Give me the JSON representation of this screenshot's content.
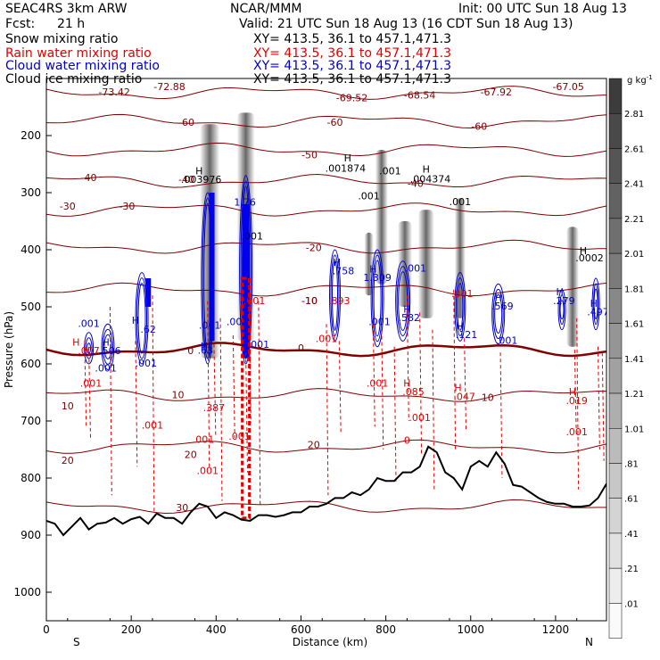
{
  "header": {
    "model": "SEAC4RS  3km ARW",
    "org": "NCAR/MMM",
    "init": "Init: 00 UTC Sun 18 Aug 13",
    "fcst_label": "Fcst:",
    "fcst_value": "21 h",
    "valid": "Valid: 21 UTC Sun 18 Aug 13 (16 CDT Sun 18 Aug 13)"
  },
  "legend": [
    {
      "label": "Snow mixing ratio",
      "xy": "XY=  413.5, 36.1 to 457.1,471.3",
      "color": "#000000"
    },
    {
      "label": "Rain water mixing ratio",
      "xy": "XY=  413.5, 36.1 to 457.1,471.3",
      "color": "#e00000"
    },
    {
      "label": "Cloud water mixing ratio",
      "xy": "XY=  413.5, 36.1 to 457.1,471.3",
      "color": "#0000cc"
    },
    {
      "label": "Cloud ice mixing ratio",
      "xy": "XY=  413.5, 36.1 to 457.1,471.3",
      "color": "#000000"
    }
  ],
  "chart_data": {
    "type": "cross-section",
    "xlabel": "Distance (km)",
    "ylabel": "Pressure (hPa)",
    "xlim": [
      0,
      1320
    ],
    "ylim": [
      1050,
      100
    ],
    "x_ticks": [
      "0",
      "200",
      "400",
      "600",
      "800",
      "1000",
      "1200"
    ],
    "x_tick_values": [
      0,
      200,
      400,
      600,
      800,
      1000,
      1200
    ],
    "y_ticks": [
      "200",
      "300",
      "400",
      "500",
      "600",
      "700",
      "800",
      "900",
      "1000"
    ],
    "y_tick_values": [
      200,
      300,
      400,
      500,
      600,
      700,
      800,
      900,
      1000
    ],
    "x_end_labels": {
      "left": "S",
      "right": "N"
    },
    "colorbar": {
      "unit": "g kg",
      "unit_exp": "-1",
      "labels": [
        "2.81",
        "2.61",
        "2.41",
        "2.21",
        "2.01",
        "1.81",
        "1.61",
        "1.41",
        "1.21",
        "1.01",
        ".81",
        ".61",
        ".41",
        ".21",
        ".01"
      ],
      "values": [
        2.81,
        2.61,
        2.41,
        2.21,
        2.01,
        1.81,
        1.61,
        1.41,
        1.21,
        1.01,
        0.81,
        0.61,
        0.41,
        0.21,
        0.01
      ]
    },
    "temperature_contours": {
      "levels": [
        -70,
        -60,
        -50,
        -40,
        -30,
        -20,
        -10,
        0,
        10,
        20,
        30
      ],
      "labels": [
        {
          "text": "-73.42",
          "x": 160,
          "p": 130
        },
        {
          "text": "-72.88",
          "x": 290,
          "p": 120
        },
        {
          "text": "-69.52",
          "x": 720,
          "p": 140
        },
        {
          "text": "-68.54",
          "x": 880,
          "p": 135
        },
        {
          "text": "-67.92",
          "x": 1060,
          "p": 130
        },
        {
          "text": "-67.05",
          "x": 1230,
          "p": 120
        },
        {
          "text": "-60",
          "x": 330,
          "p": 183
        },
        {
          "text": "-60",
          "x": 680,
          "p": 183
        },
        {
          "text": "-60",
          "x": 1020,
          "p": 190
        },
        {
          "text": "-50",
          "x": 620,
          "p": 240
        },
        {
          "text": "-40",
          "x": 100,
          "p": 280
        },
        {
          "text": "-40",
          "x": 330,
          "p": 283
        },
        {
          "text": "-40",
          "x": 870,
          "p": 290
        },
        {
          "text": "-30",
          "x": 50,
          "p": 330
        },
        {
          "text": "-30",
          "x": 190,
          "p": 330
        },
        {
          "text": "-20",
          "x": 630,
          "p": 402
        },
        {
          "text": "-10",
          "x": 620,
          "p": 495
        },
        {
          "text": "0",
          "x": 340,
          "p": 583
        },
        {
          "text": "0",
          "x": 600,
          "p": 578
        },
        {
          "text": "10",
          "x": 50,
          "p": 680
        },
        {
          "text": "10",
          "x": 310,
          "p": 660
        },
        {
          "text": "10",
          "x": 1040,
          "p": 665
        },
        {
          "text": "20",
          "x": 50,
          "p": 775
        },
        {
          "text": "20",
          "x": 340,
          "p": 765
        },
        {
          "text": "20",
          "x": 630,
          "p": 748
        },
        {
          "text": "30",
          "x": 320,
          "p": 858
        }
      ]
    },
    "terrain": {
      "x": [
        0,
        20,
        40,
        60,
        80,
        100,
        120,
        140,
        160,
        180,
        200,
        220,
        240,
        260,
        280,
        300,
        320,
        340,
        360,
        380,
        400,
        420,
        440,
        460,
        480,
        500,
        520,
        540,
        560,
        580,
        600,
        620,
        640,
        660,
        680,
        700,
        720,
        740,
        760,
        780,
        800,
        820,
        840,
        860,
        880,
        900,
        920,
        940,
        960,
        980,
        1000,
        1020,
        1040,
        1060,
        1080,
        1100,
        1120,
        1140,
        1160,
        1180,
        1200,
        1220,
        1240,
        1260,
        1280,
        1300,
        1320
      ],
      "p": [
        875,
        880,
        900,
        885,
        870,
        890,
        880,
        878,
        870,
        880,
        872,
        868,
        880,
        862,
        870,
        870,
        880,
        860,
        845,
        850,
        870,
        860,
        865,
        873,
        875,
        865,
        865,
        868,
        865,
        860,
        860,
        850,
        850,
        845,
        835,
        835,
        825,
        830,
        820,
        800,
        805,
        805,
        790,
        790,
        780,
        745,
        755,
        790,
        800,
        820,
        780,
        770,
        780,
        755,
        775,
        812,
        815,
        825,
        835,
        842,
        845,
        845,
        850,
        850,
        848,
        835,
        810
      ]
    },
    "extrema_labels": [
      {
        "text": "H",
        "x": 360,
        "p": 268,
        "color": "#000000"
      },
      {
        "text": ".003976",
        "x": 365,
        "p": 283,
        "color": "#000000"
      },
      {
        "text": "H",
        "x": 710,
        "p": 245,
        "color": "#000000"
      },
      {
        "text": ".001874",
        "x": 705,
        "p": 263,
        "color": "#000000"
      },
      {
        "text": ".001",
        "x": 810,
        "p": 268,
        "color": "#000000"
      },
      {
        "text": "H",
        "x": 895,
        "p": 265,
        "color": "#000000"
      },
      {
        "text": ".004374",
        "x": 905,
        "p": 282,
        "color": "#000000"
      },
      {
        "text": ".001",
        "x": 760,
        "p": 312,
        "color": "#000000"
      },
      {
        "text": ".001",
        "x": 975,
        "p": 322,
        "color": "#000000"
      },
      {
        "text": "1.76",
        "x": 468,
        "p": 323,
        "color": "#0000cc"
      },
      {
        "text": ".001",
        "x": 485,
        "p": 382,
        "color": "#000000"
      },
      {
        "text": "H",
        "x": 1265,
        "p": 408,
        "color": "#000000"
      },
      {
        "text": ".0002",
        "x": 1280,
        "p": 420,
        "color": "#000000"
      },
      {
        "text": "H",
        "x": 685,
        "p": 428,
        "color": "#0000cc"
      },
      {
        "text": ".758",
        "x": 700,
        "p": 443,
        "color": "#0000cc"
      },
      {
        "text": "H",
        "x": 770,
        "p": 440,
        "color": "#0000cc"
      },
      {
        "text": "1.309",
        "x": 780,
        "p": 455,
        "color": "#0000cc"
      },
      {
        "text": ".001",
        "x": 870,
        "p": 438,
        "color": "#0000cc"
      },
      {
        "text": "-10",
        "x": 620,
        "p": 495,
        "color": "#800000"
      },
      {
        "text": ".893",
        "x": 690,
        "p": 495,
        "color": "#e00000"
      },
      {
        "text": ".001",
        "x": 490,
        "p": 495,
        "color": "#e00000"
      },
      {
        "text": ".001",
        "x": 980,
        "p": 483,
        "color": "#e00000"
      },
      {
        "text": "H",
        "x": 1065,
        "p": 490,
        "color": "#0000cc"
      },
      {
        "text": ".569",
        "x": 1075,
        "p": 505,
        "color": "#0000cc"
      },
      {
        "text": "H",
        "x": 1210,
        "p": 480,
        "color": "#0000cc"
      },
      {
        "text": ".279",
        "x": 1220,
        "p": 495,
        "color": "#0000cc"
      },
      {
        "text": "H",
        "x": 1290,
        "p": 500,
        "color": "#0000cc"
      },
      {
        "text": ".497",
        "x": 1300,
        "p": 515,
        "color": "#0000cc"
      },
      {
        "text": ".001",
        "x": 100,
        "p": 535,
        "color": "#0000cc"
      },
      {
        "text": "H",
        "x": 210,
        "p": 530,
        "color": "#0000cc"
      },
      {
        "text": ".62",
        "x": 240,
        "p": 545,
        "color": "#0000cc"
      },
      {
        "text": ".001",
        "x": 385,
        "p": 538,
        "color": "#0000cc"
      },
      {
        "text": ".001",
        "x": 450,
        "p": 532,
        "color": "#0000cc"
      },
      {
        "text": ".001",
        "x": 785,
        "p": 532,
        "color": "#0000cc"
      },
      {
        "text": "H",
        "x": 850,
        "p": 510,
        "color": "#0000cc"
      },
      {
        "text": ".582",
        "x": 855,
        "p": 525,
        "color": "#0000cc"
      },
      {
        "text": "H",
        "x": 975,
        "p": 540,
        "color": "#0000cc"
      },
      {
        "text": ".121",
        "x": 990,
        "p": 555,
        "color": "#0000cc"
      },
      {
        "text": "H",
        "x": 70,
        "p": 568,
        "color": "#e00000"
      },
      {
        "text": ".007",
        "x": 100,
        "p": 583,
        "color": "#e00000"
      },
      {
        "text": "H",
        "x": 140,
        "p": 568,
        "color": "#0000cc"
      },
      {
        "text": ".506",
        "x": 150,
        "p": 583,
        "color": "#0000cc"
      },
      {
        "text": ".001",
        "x": 660,
        "p": 562,
        "color": "#e00000"
      },
      {
        "text": ".001",
        "x": 1085,
        "p": 565,
        "color": "#0000cc"
      },
      {
        "text": ".001",
        "x": 500,
        "p": 572,
        "color": "#0000cc"
      },
      {
        "text": "H",
        "x": 372,
        "p": 575,
        "color": "#0000cc"
      },
      {
        "text": ".63",
        "x": 375,
        "p": 582,
        "color": "#0000cc"
      },
      {
        "text": ".001",
        "x": 235,
        "p": 605,
        "color": "#0000cc"
      },
      {
        "text": ".001",
        "x": 140,
        "p": 613,
        "color": "#0000cc"
      },
      {
        "text": ".001",
        "x": 105,
        "p": 640,
        "color": "#e00000"
      },
      {
        "text": ".001",
        "x": 780,
        "p": 640,
        "color": "#e00000"
      },
      {
        "text": "H",
        "x": 850,
        "p": 640,
        "color": "#e00000"
      },
      {
        "text": ".085",
        "x": 865,
        "p": 655,
        "color": "#e00000"
      },
      {
        "text": "H",
        "x": 970,
        "p": 648,
        "color": "#e00000"
      },
      {
        "text": ".047",
        "x": 985,
        "p": 663,
        "color": "#e00000"
      },
      {
        "text": "H",
        "x": 1240,
        "p": 655,
        "color": "#e00000"
      },
      {
        "text": ".019",
        "x": 1250,
        "p": 670,
        "color": "#e00000"
      },
      {
        "text": ".387",
        "x": 395,
        "p": 683,
        "color": "#e00000"
      },
      {
        "text": ".001",
        "x": 880,
        "p": 700,
        "color": "#e00000"
      },
      {
        "text": ".001",
        "x": 250,
        "p": 713,
        "color": "#e00000"
      },
      {
        "text": ".001",
        "x": 1250,
        "p": 725,
        "color": "#e00000"
      },
      {
        "text": ".001",
        "x": 455,
        "p": 733,
        "color": "#e00000"
      },
      {
        "text": ".001",
        "x": 370,
        "p": 738,
        "color": "#e00000"
      },
      {
        "text": "0",
        "x": 850,
        "p": 740,
        "color": "#e00000"
      },
      {
        "text": ".001",
        "x": 380,
        "p": 793,
        "color": "#e00000"
      }
    ]
  }
}
